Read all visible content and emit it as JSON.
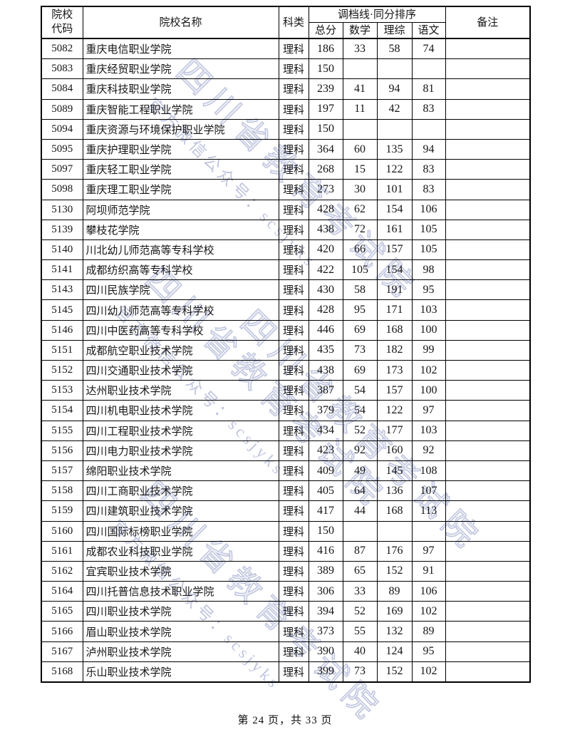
{
  "document": {
    "footer": "第 24 页，共 33 页"
  },
  "watermark": {
    "main": "四川省教育考试院",
    "sub": "官方微信公众号：scsjyks"
  },
  "table": {
    "headers": {
      "code": "院校代码",
      "name": "院校名称",
      "category": "科类",
      "score_group": "调档线·同分排序",
      "total": "总分",
      "math": "数学",
      "science": "理综",
      "chinese": "语文",
      "remark": "备注"
    },
    "rows": [
      {
        "code": "5082",
        "name": "重庆电信职业学院",
        "category": "理科",
        "total": "186",
        "math": "33",
        "science": "58",
        "chinese": "74",
        "remark": ""
      },
      {
        "code": "5083",
        "name": "重庆经贸职业学院",
        "category": "理科",
        "total": "150",
        "math": "",
        "science": "",
        "chinese": "",
        "remark": ""
      },
      {
        "code": "5084",
        "name": "重庆科技职业学院",
        "category": "理科",
        "total": "239",
        "math": "41",
        "science": "94",
        "chinese": "81",
        "remark": ""
      },
      {
        "code": "5089",
        "name": "重庆智能工程职业学院",
        "category": "理科",
        "total": "197",
        "math": "11",
        "science": "42",
        "chinese": "83",
        "remark": ""
      },
      {
        "code": "5094",
        "name": "重庆资源与环境保护职业学院",
        "category": "理科",
        "total": "150",
        "math": "",
        "science": "",
        "chinese": "",
        "remark": ""
      },
      {
        "code": "5095",
        "name": "重庆护理职业学院",
        "category": "理科",
        "total": "364",
        "math": "60",
        "science": "135",
        "chinese": "94",
        "remark": ""
      },
      {
        "code": "5097",
        "name": "重庆轻工职业学院",
        "category": "理科",
        "total": "268",
        "math": "15",
        "science": "122",
        "chinese": "83",
        "remark": ""
      },
      {
        "code": "5098",
        "name": "重庆理工职业学院",
        "category": "理科",
        "total": "273",
        "math": "30",
        "science": "101",
        "chinese": "83",
        "remark": ""
      },
      {
        "code": "5130",
        "name": "阿坝师范学院",
        "category": "理科",
        "total": "428",
        "math": "62",
        "science": "154",
        "chinese": "106",
        "remark": ""
      },
      {
        "code": "5139",
        "name": "攀枝花学院",
        "category": "理科",
        "total": "438",
        "math": "72",
        "science": "161",
        "chinese": "105",
        "remark": ""
      },
      {
        "code": "5140",
        "name": "川北幼儿师范高等专科学校",
        "category": "理科",
        "total": "420",
        "math": "66",
        "science": "157",
        "chinese": "105",
        "remark": ""
      },
      {
        "code": "5141",
        "name": "成都纺织高等专科学校",
        "category": "理科",
        "total": "422",
        "math": "105",
        "science": "154",
        "chinese": "98",
        "remark": ""
      },
      {
        "code": "5143",
        "name": "四川民族学院",
        "category": "理科",
        "total": "430",
        "math": "58",
        "science": "191",
        "chinese": "95",
        "remark": ""
      },
      {
        "code": "5145",
        "name": "四川幼儿师范高等专科学校",
        "category": "理科",
        "total": "428",
        "math": "95",
        "science": "171",
        "chinese": "103",
        "remark": ""
      },
      {
        "code": "5146",
        "name": "四川中医药高等专科学校",
        "category": "理科",
        "total": "446",
        "math": "69",
        "science": "168",
        "chinese": "100",
        "remark": ""
      },
      {
        "code": "5151",
        "name": "成都航空职业技术学院",
        "category": "理科",
        "total": "435",
        "math": "73",
        "science": "182",
        "chinese": "99",
        "remark": ""
      },
      {
        "code": "5152",
        "name": "四川交通职业技术学院",
        "category": "理科",
        "total": "438",
        "math": "69",
        "science": "173",
        "chinese": "102",
        "remark": ""
      },
      {
        "code": "5153",
        "name": "达州职业技术学院",
        "category": "理科",
        "total": "387",
        "math": "54",
        "science": "157",
        "chinese": "100",
        "remark": ""
      },
      {
        "code": "5154",
        "name": "四川机电职业技术学院",
        "category": "理科",
        "total": "379",
        "math": "54",
        "science": "122",
        "chinese": "97",
        "remark": ""
      },
      {
        "code": "5155",
        "name": "四川工程职业技术学院",
        "category": "理科",
        "total": "434",
        "math": "52",
        "science": "177",
        "chinese": "103",
        "remark": ""
      },
      {
        "code": "5156",
        "name": "四川电力职业技术学院",
        "category": "理科",
        "total": "423",
        "math": "92",
        "science": "160",
        "chinese": "92",
        "remark": ""
      },
      {
        "code": "5157",
        "name": "绵阳职业技术学院",
        "category": "理科",
        "total": "409",
        "math": "49",
        "science": "145",
        "chinese": "108",
        "remark": ""
      },
      {
        "code": "5158",
        "name": "四川工商职业技术学院",
        "category": "理科",
        "total": "405",
        "math": "64",
        "science": "136",
        "chinese": "107",
        "remark": ""
      },
      {
        "code": "5159",
        "name": "四川建筑职业技术学院",
        "category": "理科",
        "total": "417",
        "math": "44",
        "science": "168",
        "chinese": "113",
        "remark": ""
      },
      {
        "code": "5160",
        "name": "四川国际标榜职业学院",
        "category": "理科",
        "total": "150",
        "math": "",
        "science": "",
        "chinese": "",
        "remark": ""
      },
      {
        "code": "5161",
        "name": "成都农业科技职业学院",
        "category": "理科",
        "total": "416",
        "math": "87",
        "science": "176",
        "chinese": "97",
        "remark": ""
      },
      {
        "code": "5162",
        "name": "宜宾职业技术学院",
        "category": "理科",
        "total": "389",
        "math": "65",
        "science": "152",
        "chinese": "91",
        "remark": ""
      },
      {
        "code": "5164",
        "name": "四川托普信息技术职业学院",
        "category": "理科",
        "total": "306",
        "math": "33",
        "science": "89",
        "chinese": "106",
        "remark": ""
      },
      {
        "code": "5165",
        "name": "四川职业技术学院",
        "category": "理科",
        "total": "394",
        "math": "52",
        "science": "169",
        "chinese": "102",
        "remark": ""
      },
      {
        "code": "5166",
        "name": "眉山职业技术学院",
        "category": "理科",
        "total": "373",
        "math": "55",
        "science": "132",
        "chinese": "89",
        "remark": ""
      },
      {
        "code": "5167",
        "name": "泸州职业技术学院",
        "category": "理科",
        "total": "390",
        "math": "40",
        "science": "124",
        "chinese": "95",
        "remark": ""
      },
      {
        "code": "5168",
        "name": "乐山职业技术学院",
        "category": "理科",
        "total": "399",
        "math": "73",
        "science": "152",
        "chinese": "102",
        "remark": ""
      }
    ]
  }
}
